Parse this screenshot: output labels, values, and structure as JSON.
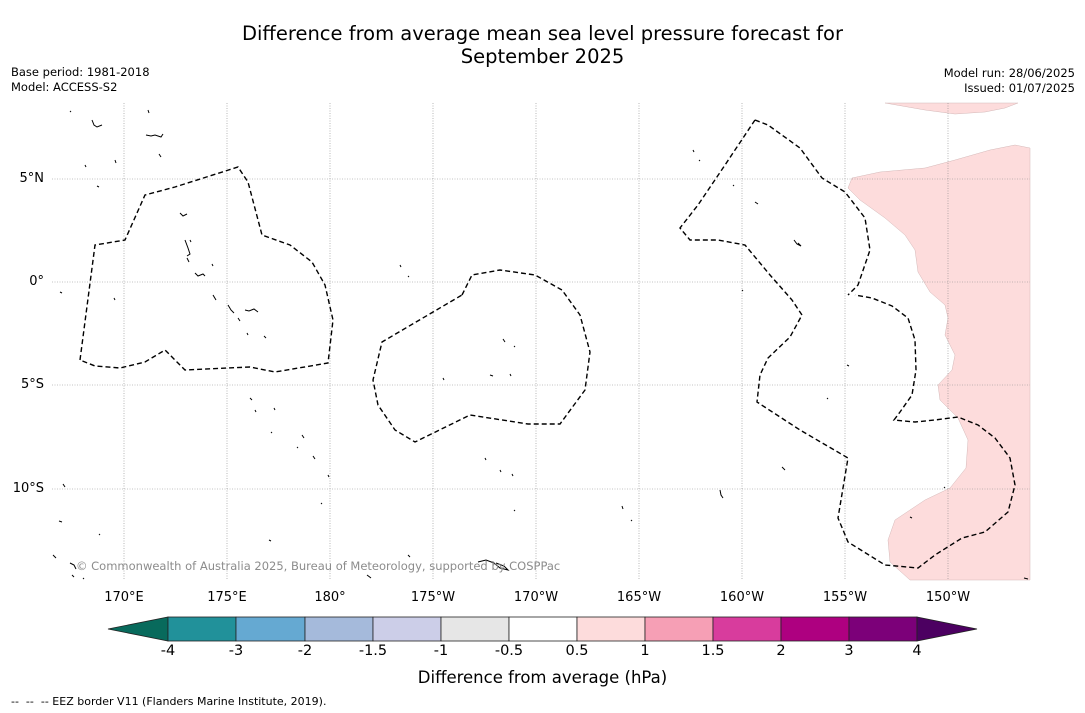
{
  "title": {
    "line1": "Difference from average mean sea level pressure forecast for",
    "line2": "September 2025"
  },
  "meta": {
    "base_period": "Base period: 1981-2018",
    "model": "Model: ACCESS-S2",
    "model_run": "Model run: 28/06/2025",
    "issued": "Issued: 01/07/2025"
  },
  "map": {
    "lat_labels": [
      "5°N",
      "0°",
      "5°S",
      "10°S"
    ],
    "lon_labels": [
      "170°E",
      "175°E",
      "180°",
      "175°W",
      "170°W",
      "165°W",
      "160°W",
      "155°W",
      "150°W"
    ],
    "copyright": "© Commonwealth of Australia 2025, Bureau of Meteorology, supported by COSPPac",
    "anomaly_fill_color": "#fddcdc"
  },
  "colorbar": {
    "title": "Difference from average (hPa)",
    "tick_labels": [
      "-4",
      "-3",
      "-2",
      "-1.5",
      "-1",
      "-0.5",
      "0.5",
      "1",
      "1.5",
      "2",
      "3",
      "4"
    ],
    "colors": [
      "#086a5c",
      "#21919a",
      "#65a9d2",
      "#a5badb",
      "#cccee8",
      "#e6e6e6",
      "#ffffff",
      "#fddcdc",
      "#f69fb5",
      "#d83c9d",
      "#ae0080",
      "#7c0079",
      "#4c0061"
    ]
  },
  "footer": "--  --  -- EEZ border V11 (Flanders Marine Institute, 2019)."
}
